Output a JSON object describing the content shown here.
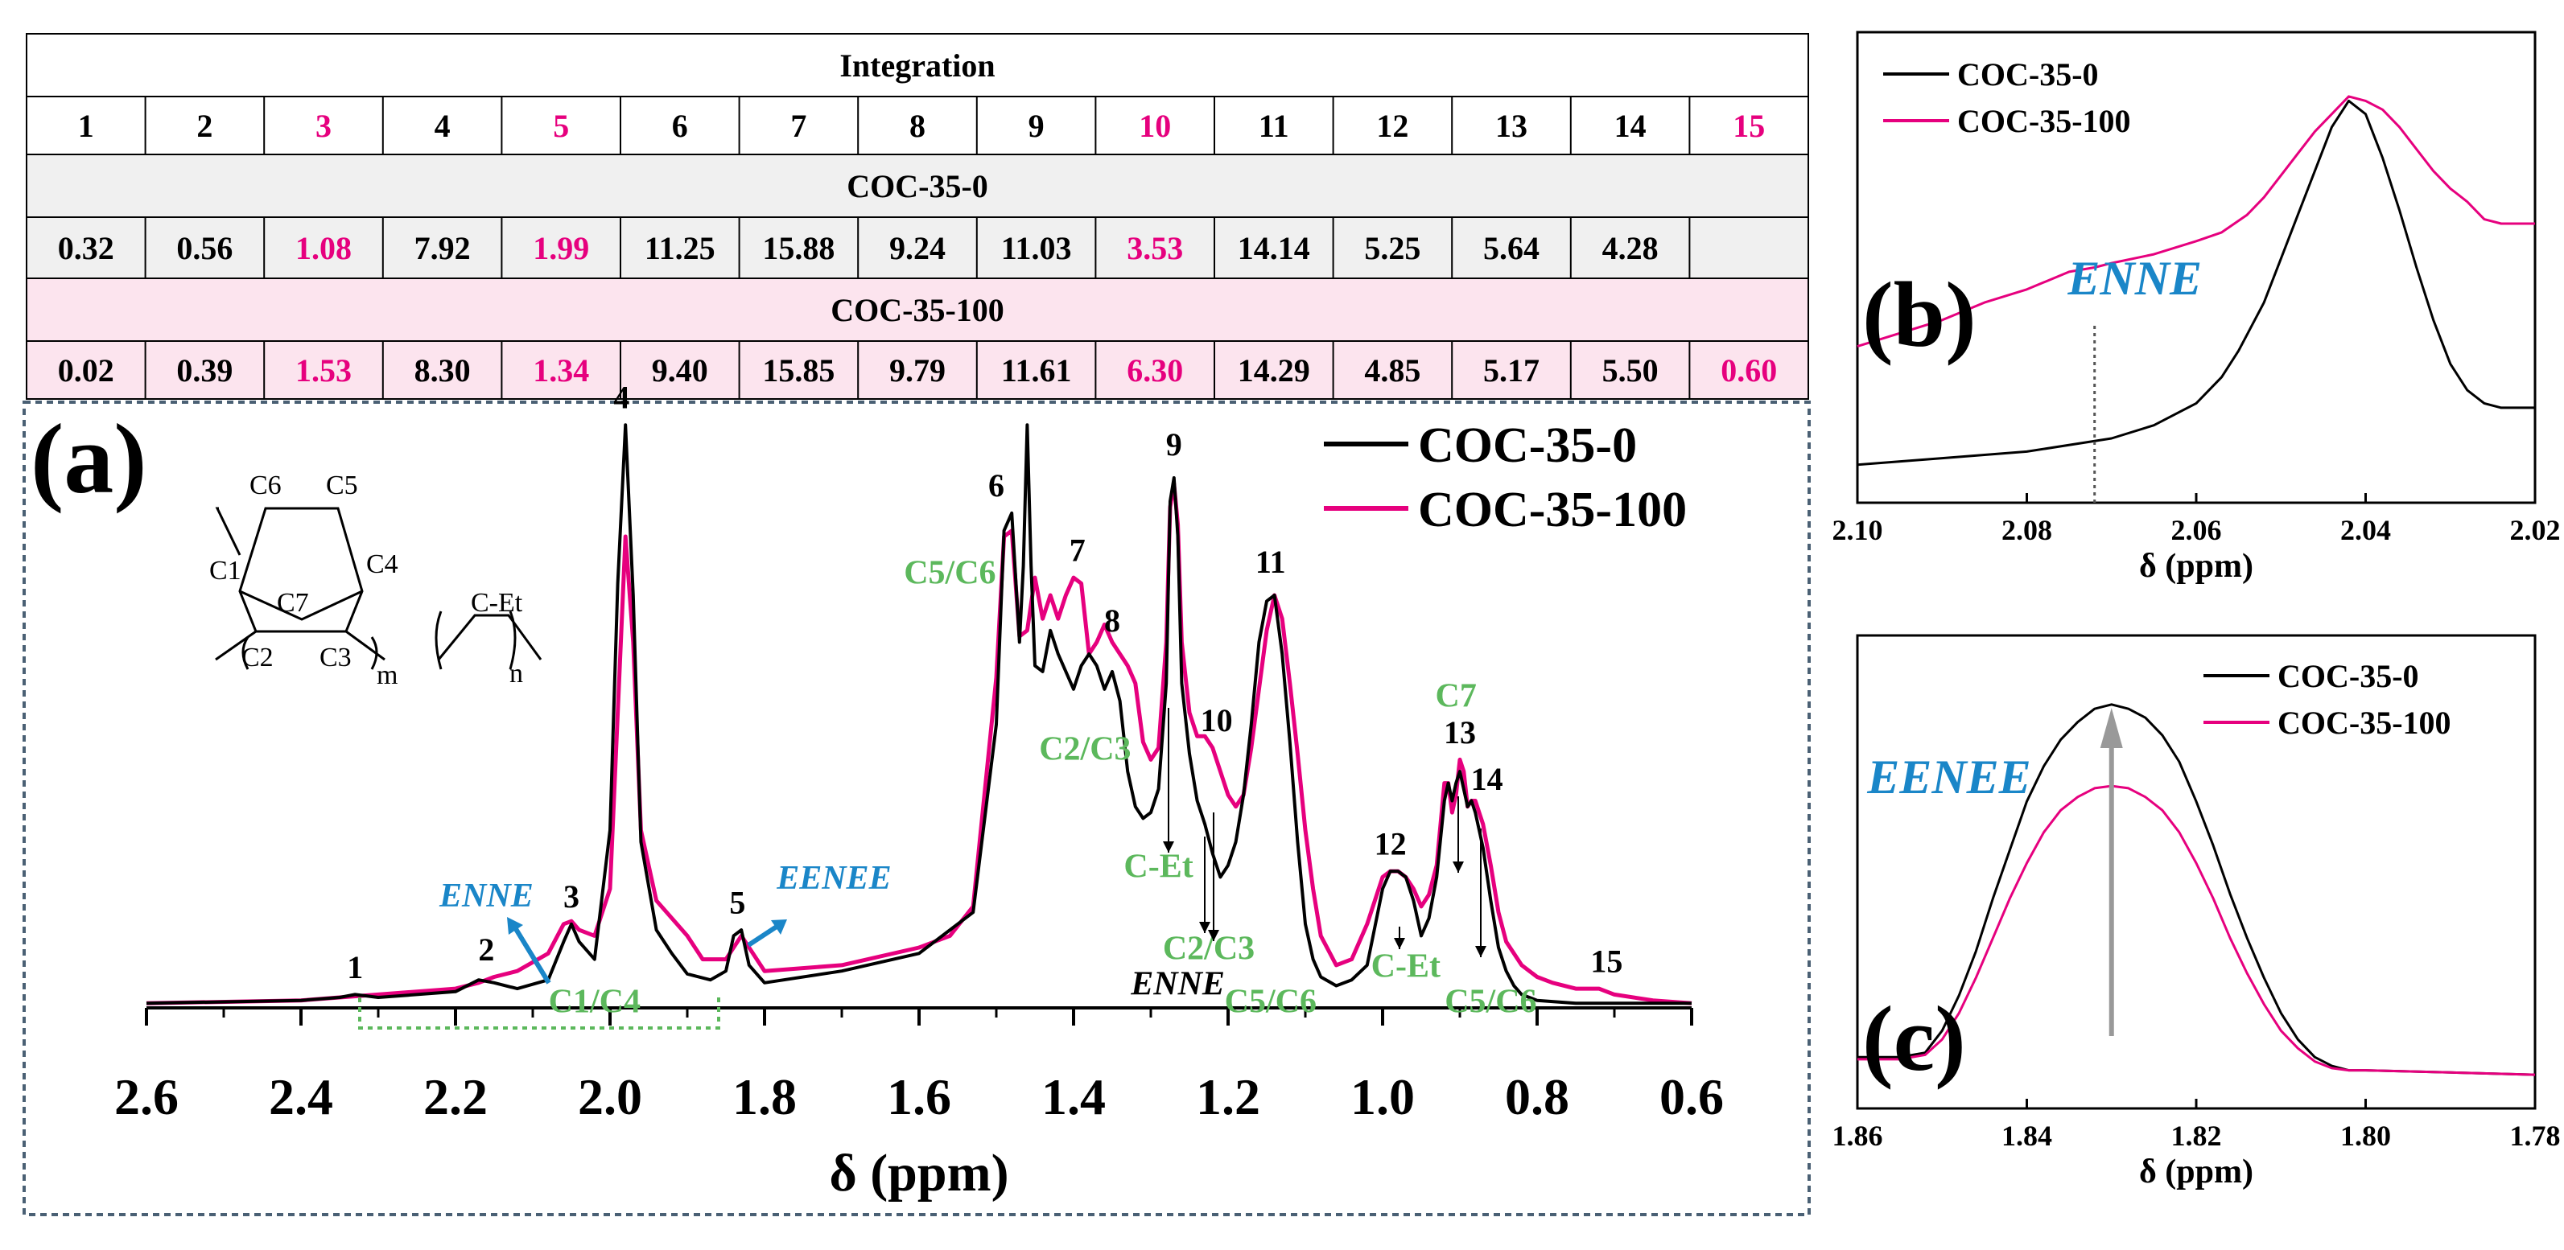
{
  "colors": {
    "sample0": "#000000",
    "sample100": "#e6007e",
    "peak_label_green": "#5cb85c",
    "seq_label_blue": "#1a86c8",
    "row_bg_gray": "#f0f0f0",
    "row_bg_pink": "#fce4ee",
    "frame_blue": "#4a6074"
  },
  "integration_table": {
    "title": "Integration",
    "peak_numbers": [
      "1",
      "2",
      "3",
      "4",
      "5",
      "6",
      "7",
      "8",
      "9",
      "10",
      "11",
      "12",
      "13",
      "14",
      "15"
    ],
    "highlight_peaks": [
      "3",
      "5",
      "10",
      "15"
    ],
    "sample0": {
      "name": "COC-35-0",
      "values": [
        "0.32",
        "0.56",
        "1.08",
        "7.92",
        "1.99",
        "11.25",
        "15.88",
        "9.24",
        "11.03",
        "3.53",
        "14.14",
        "5.25",
        "5.64",
        "4.28",
        ""
      ]
    },
    "sample100": {
      "name": "COC-35-100",
      "values": [
        "0.02",
        "0.39",
        "1.53",
        "8.30",
        "1.34",
        "9.40",
        "15.85",
        "9.79",
        "11.61",
        "6.30",
        "14.29",
        "4.85",
        "5.17",
        "5.50",
        "0.60"
      ]
    }
  },
  "chart_data": [
    {
      "panel": "(a)",
      "type": "line",
      "title": "",
      "xlabel": "δ (ppm)",
      "ylabel": "",
      "x_reversed": true,
      "xlim": [
        2.6,
        0.6
      ],
      "ylim": [
        0,
        100
      ],
      "xticks": [
        "2.6",
        "2.4",
        "2.2",
        "2.0",
        "1.8",
        "1.6",
        "1.4",
        "1.2",
        "1.0",
        "0.8",
        "0.6"
      ],
      "legend": [
        "COC-35-0",
        "COC-35-100"
      ],
      "legend_position": "top-right",
      "structure_labels": [
        "C6",
        "C5",
        "C1",
        "C4",
        "C7",
        "C2",
        "C3",
        "C-Et",
        "m",
        "n"
      ],
      "series": [
        {
          "name": "COC-35-0",
          "x": [
            2.6,
            2.4,
            2.35,
            2.33,
            2.3,
            2.2,
            2.17,
            2.15,
            2.12,
            2.08,
            2.06,
            2.05,
            2.04,
            2.02,
            2.0,
            1.99,
            1.98,
            1.97,
            1.96,
            1.94,
            1.92,
            1.9,
            1.87,
            1.85,
            1.84,
            1.83,
            1.82,
            1.8,
            1.7,
            1.6,
            1.56,
            1.53,
            1.5,
            1.49,
            1.48,
            1.47,
            1.465,
            1.46,
            1.455,
            1.45,
            1.44,
            1.43,
            1.42,
            1.4,
            1.39,
            1.38,
            1.37,
            1.36,
            1.35,
            1.34,
            1.33,
            1.32,
            1.31,
            1.3,
            1.29,
            1.28,
            1.275,
            1.27,
            1.265,
            1.26,
            1.25,
            1.24,
            1.23,
            1.22,
            1.21,
            1.2,
            1.19,
            1.18,
            1.17,
            1.16,
            1.15,
            1.14,
            1.13,
            1.12,
            1.11,
            1.1,
            1.09,
            1.08,
            1.06,
            1.04,
            1.02,
            1.0,
            0.99,
            0.98,
            0.97,
            0.96,
            0.95,
            0.94,
            0.93,
            0.92,
            0.915,
            0.91,
            0.905,
            0.9,
            0.895,
            0.89,
            0.885,
            0.88,
            0.875,
            0.87,
            0.86,
            0.85,
            0.84,
            0.83,
            0.82,
            0.8,
            0.75,
            0.72,
            0.7,
            0.65,
            0.6
          ],
          "y": [
            0.5,
            1.0,
            1.5,
            2.0,
            1.5,
            2.5,
            4.5,
            4.0,
            3.0,
            4.5,
            11.0,
            14.0,
            11.0,
            8.0,
            30.0,
            72.0,
            99.0,
            70.0,
            28.0,
            13.0,
            9.0,
            5.5,
            4.5,
            6.0,
            12.0,
            13.0,
            7.0,
            4.0,
            6.0,
            9.0,
            13.0,
            16.0,
            48.0,
            81.0,
            84.0,
            62.0,
            75.0,
            99.0,
            75.0,
            58.0,
            57.0,
            64.0,
            60.0,
            54.0,
            58.0,
            60.0,
            58.0,
            54.0,
            57.0,
            52.0,
            40.0,
            34.0,
            32.0,
            33.0,
            37.0,
            55.0,
            86.0,
            90.0,
            80.0,
            55.0,
            43.0,
            35.0,
            31.0,
            26.0,
            22.0,
            24.0,
            28.0,
            36.0,
            48.0,
            62.0,
            69.0,
            70.0,
            60.0,
            45.0,
            28.0,
            14.0,
            8.0,
            5.0,
            3.5,
            4.5,
            7.0,
            20.0,
            23.0,
            23.0,
            22.0,
            18.0,
            12.0,
            15.0,
            22.0,
            35.0,
            38.0,
            35.0,
            38.0,
            40.0,
            37.0,
            34.0,
            35.0,
            33.0,
            30.0,
            27.0,
            18.0,
            10.0,
            6.0,
            3.5,
            2.0,
            1.0,
            0.5,
            0.5,
            0.5,
            0.5,
            0.5
          ]
        },
        {
          "name": "COC-35-100",
          "x": [
            2.6,
            2.4,
            2.35,
            2.3,
            2.2,
            2.17,
            2.15,
            2.12,
            2.08,
            2.06,
            2.05,
            2.04,
            2.02,
            2.0,
            1.99,
            1.98,
            1.97,
            1.96,
            1.94,
            1.92,
            1.9,
            1.88,
            1.85,
            1.84,
            1.83,
            1.82,
            1.8,
            1.7,
            1.6,
            1.56,
            1.53,
            1.5,
            1.49,
            1.48,
            1.47,
            1.46,
            1.45,
            1.44,
            1.43,
            1.42,
            1.41,
            1.4,
            1.39,
            1.38,
            1.37,
            1.36,
            1.35,
            1.34,
            1.33,
            1.32,
            1.31,
            1.3,
            1.29,
            1.28,
            1.275,
            1.27,
            1.265,
            1.26,
            1.25,
            1.24,
            1.23,
            1.22,
            1.21,
            1.2,
            1.19,
            1.18,
            1.17,
            1.16,
            1.15,
            1.14,
            1.13,
            1.12,
            1.11,
            1.1,
            1.09,
            1.08,
            1.06,
            1.04,
            1.02,
            1.0,
            0.99,
            0.98,
            0.97,
            0.96,
            0.95,
            0.94,
            0.93,
            0.92,
            0.915,
            0.91,
            0.905,
            0.9,
            0.895,
            0.89,
            0.885,
            0.88,
            0.875,
            0.87,
            0.86,
            0.85,
            0.84,
            0.82,
            0.8,
            0.78,
            0.75,
            0.72,
            0.7,
            0.65,
            0.6
          ],
          "y": [
            0.5,
            1.0,
            1.5,
            2.0,
            3.0,
            4.0,
            5.0,
            6.0,
            9.0,
            14.0,
            14.5,
            13.0,
            12.0,
            20.0,
            50.0,
            80.0,
            62.0,
            30.0,
            18.0,
            15.0,
            12.0,
            8.0,
            8.0,
            10.0,
            12.0,
            10.0,
            6.0,
            7.0,
            10.0,
            12.0,
            17.0,
            56.0,
            80.0,
            81.0,
            63.0,
            64.0,
            73.0,
            66.0,
            70.0,
            66.0,
            70.0,
            73.0,
            72.0,
            60.0,
            62.0,
            65.0,
            62.0,
            60.0,
            58.0,
            55.0,
            45.0,
            42.0,
            44.0,
            62.0,
            85.0,
            89.0,
            82.0,
            62.0,
            50.0,
            46.0,
            46.0,
            44.0,
            40.0,
            36.0,
            34.0,
            36.0,
            44.0,
            54.0,
            64.0,
            70.0,
            66.0,
            55.0,
            43.0,
            30.0,
            20.0,
            12.0,
            7.0,
            8.0,
            14.0,
            22.0,
            23.0,
            23.0,
            22.0,
            20.0,
            17.0,
            19.0,
            24.0,
            38.0,
            38.0,
            33.0,
            36.0,
            42.0,
            40.0,
            34.0,
            35.0,
            35.0,
            33.0,
            31.0,
            24.0,
            16.0,
            11.0,
            7.0,
            5.0,
            4.0,
            3.0,
            3.0,
            2.0,
            1.0,
            0.5
          ]
        }
      ],
      "peak_numbers": [
        {
          "label": "1",
          "x": 2.33,
          "y": 4
        },
        {
          "label": "2",
          "x": 2.16,
          "y": 7
        },
        {
          "label": "3",
          "x": 2.05,
          "y": 16
        },
        {
          "label": "4",
          "x": 1.985,
          "y": 101
        },
        {
          "label": "5",
          "x": 1.835,
          "y": 15
        },
        {
          "label": "6",
          "x": 1.5,
          "y": 86
        },
        {
          "label": "7",
          "x": 1.395,
          "y": 75
        },
        {
          "label": "8",
          "x": 1.35,
          "y": 63
        },
        {
          "label": "9",
          "x": 1.27,
          "y": 93
        },
        {
          "label": "10",
          "x": 1.215,
          "y": 46
        },
        {
          "label": "11",
          "x": 1.145,
          "y": 73
        },
        {
          "label": "12",
          "x": 0.99,
          "y": 25
        },
        {
          "label": "13",
          "x": 0.9,
          "y": 44
        },
        {
          "label": "14",
          "x": 0.865,
          "y": 36
        },
        {
          "label": "15",
          "x": 0.71,
          "y": 5
        }
      ],
      "assignments": [
        {
          "text": "C5/C6",
          "x": 1.56,
          "y": 72,
          "color": "green"
        },
        {
          "text": "C2/C3",
          "x": 1.385,
          "y": 42,
          "color": "green"
        },
        {
          "text": "C-Et",
          "x": 1.29,
          "y": 22,
          "color": "green"
        },
        {
          "text": "C2/C3",
          "x": 1.225,
          "y": 8,
          "color": "green"
        },
        {
          "text": "ENNE",
          "x": 1.265,
          "y": 2,
          "color": "black"
        },
        {
          "text": "C5/C6",
          "x": 1.145,
          "y": -1,
          "color": "green"
        },
        {
          "text": "C1/C4",
          "x": 2.02,
          "y": -1,
          "color": "green"
        },
        {
          "text": "C-Et",
          "x": 0.97,
          "y": 5,
          "color": "green"
        },
        {
          "text": "C7",
          "x": 0.905,
          "y": 51,
          "color": "green"
        },
        {
          "text": "C5/C6",
          "x": 0.86,
          "y": -1,
          "color": "green"
        }
      ],
      "sequence_labels": [
        {
          "text": "ENNE",
          "x": 2.16,
          "y": 17
        },
        {
          "text": "EENEE",
          "x": 1.71,
          "y": 20
        }
      ]
    },
    {
      "panel": "(b)",
      "type": "line",
      "xlabel": "δ (ppm)",
      "x_reversed": true,
      "xlim": [
        2.1,
        2.02
      ],
      "ylim": [
        0,
        100
      ],
      "xticks": [
        "2.10",
        "2.08",
        "2.06",
        "2.04",
        "2.02"
      ],
      "legend": [
        "COC-35-0",
        "COC-35-100"
      ],
      "legend_position": "top-left",
      "annotation": {
        "text": "ENNE",
        "x": 2.072
      },
      "series": [
        {
          "name": "COC-35-0",
          "x": [
            2.1,
            2.09,
            2.08,
            2.07,
            2.065,
            2.06,
            2.057,
            2.055,
            2.052,
            2.05,
            2.048,
            2.046,
            2.044,
            2.042,
            2.04,
            2.038,
            2.036,
            2.034,
            2.032,
            2.03,
            2.028,
            2.026,
            2.024,
            2.022,
            2.02
          ],
          "y": [
            5,
            6.5,
            8,
            11,
            14,
            19,
            25,
            31,
            42,
            52,
            62,
            72,
            82,
            88,
            85,
            75,
            63,
            50,
            38,
            28,
            22,
            19,
            18,
            18,
            18
          ]
        },
        {
          "name": "COC-35-100",
          "x": [
            2.1,
            2.09,
            2.085,
            2.08,
            2.075,
            2.072,
            2.07,
            2.065,
            2.06,
            2.057,
            2.054,
            2.052,
            2.05,
            2.048,
            2.046,
            2.044,
            2.042,
            2.04,
            2.038,
            2.036,
            2.034,
            2.032,
            2.03,
            2.028,
            2.026,
            2.024,
            2.022,
            2.02
          ],
          "y": [
            32,
            38,
            42,
            45,
            49,
            50,
            51,
            53,
            56,
            58,
            62,
            66,
            71,
            76,
            81,
            85,
            89,
            88,
            86,
            82,
            77,
            72,
            68,
            65,
            61,
            60,
            60,
            60
          ]
        }
      ]
    },
    {
      "panel": "(c)",
      "type": "line",
      "xlabel": "δ (ppm)",
      "x_reversed": true,
      "xlim": [
        1.86,
        1.78
      ],
      "ylim": [
        0,
        100
      ],
      "xticks": [
        "1.86",
        "1.84",
        "1.82",
        "1.80",
        "1.78"
      ],
      "legend": [
        "COC-35-0",
        "COC-35-100"
      ],
      "legend_position": "top-right",
      "annotation": {
        "text": "EENEE",
        "x": 1.83
      },
      "series": [
        {
          "name": "COC-35-0",
          "x": [
            1.86,
            1.855,
            1.852,
            1.85,
            1.848,
            1.846,
            1.844,
            1.842,
            1.84,
            1.838,
            1.836,
            1.834,
            1.832,
            1.83,
            1.828,
            1.826,
            1.824,
            1.822,
            1.82,
            1.818,
            1.816,
            1.814,
            1.812,
            1.81,
            1.808,
            1.806,
            1.804,
            1.802,
            1.8,
            1.79,
            1.78
          ],
          "y": [
            8,
            8,
            9,
            14,
            22,
            32,
            44,
            55,
            66,
            74,
            80,
            84,
            87,
            88,
            87,
            85,
            81,
            75,
            66,
            56,
            45,
            35,
            26,
            18,
            12,
            8,
            6,
            5,
            5,
            4.5,
            4
          ]
        },
        {
          "name": "COC-35-100",
          "x": [
            1.86,
            1.855,
            1.852,
            1.85,
            1.848,
            1.846,
            1.844,
            1.842,
            1.84,
            1.838,
            1.836,
            1.834,
            1.832,
            1.83,
            1.828,
            1.826,
            1.824,
            1.822,
            1.82,
            1.818,
            1.816,
            1.814,
            1.812,
            1.81,
            1.808,
            1.806,
            1.804,
            1.802,
            1.8,
            1.79,
            1.78
          ],
          "y": [
            7.5,
            7.5,
            8.5,
            12,
            18,
            26,
            35,
            44,
            52,
            59,
            64,
            67,
            69,
            69.5,
            69,
            67,
            64,
            59,
            52,
            44,
            35,
            27,
            20,
            14,
            10,
            7,
            5.5,
            5,
            5,
            4.5,
            4
          ]
        }
      ]
    }
  ]
}
